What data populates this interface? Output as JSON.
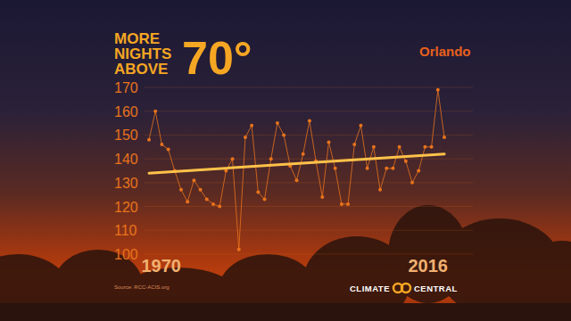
{
  "chart_data": {
    "type": "line",
    "title": "MORE NIGHTS ABOVE 70°",
    "subtitle": "Orlando",
    "source": "Source: RCC-ACIS.org",
    "credit": "CLIMATE CENTRAL",
    "x": [
      1970,
      1971,
      1972,
      1973,
      1974,
      1975,
      1976,
      1977,
      1978,
      1979,
      1980,
      1981,
      1982,
      1983,
      1984,
      1985,
      1986,
      1987,
      1988,
      1989,
      1990,
      1991,
      1992,
      1993,
      1994,
      1995,
      1996,
      1997,
      1998,
      1999,
      2000,
      2001,
      2002,
      2003,
      2004,
      2005,
      2006,
      2007,
      2008,
      2009,
      2010,
      2011,
      2012,
      2013,
      2014,
      2015,
      2016
    ],
    "series": [
      {
        "color": "#e8731c",
        "marker": "circle",
        "values": [
          148,
          160,
          146,
          144,
          135,
          127,
          122,
          131,
          127,
          123,
          121,
          120,
          135,
          140,
          102,
          149,
          154,
          126,
          123,
          140,
          155,
          150,
          137,
          131,
          142,
          156,
          139,
          124,
          147,
          136,
          121,
          121,
          146,
          154,
          136,
          145,
          127,
          136,
          136,
          145,
          139,
          130,
          135,
          145,
          145,
          169,
          149
        ]
      }
    ],
    "trend": {
      "x": [
        1970,
        2016
      ],
      "values": [
        134,
        142
      ],
      "color": "#ffc24a"
    },
    "xlim": [
      1970,
      2016
    ],
    "xticks": [
      1970,
      2016
    ],
    "ylim": [
      100,
      170
    ],
    "yticks": [
      100,
      110,
      120,
      130,
      140,
      150,
      160,
      170
    ],
    "grid": true
  }
}
